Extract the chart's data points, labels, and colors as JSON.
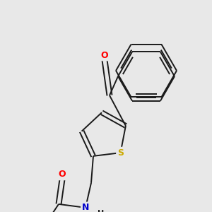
{
  "background_color": "#e8e8e8",
  "bond_color": "#1a1a1a",
  "atom_colors": {
    "O": "#ff0000",
    "S": "#ccaa00",
    "N": "#0000cc",
    "F": "#ff1493",
    "C": "#1a1a1a",
    "H": "#1a1a1a"
  },
  "figsize": [
    3.0,
    3.0
  ],
  "dpi": 100
}
